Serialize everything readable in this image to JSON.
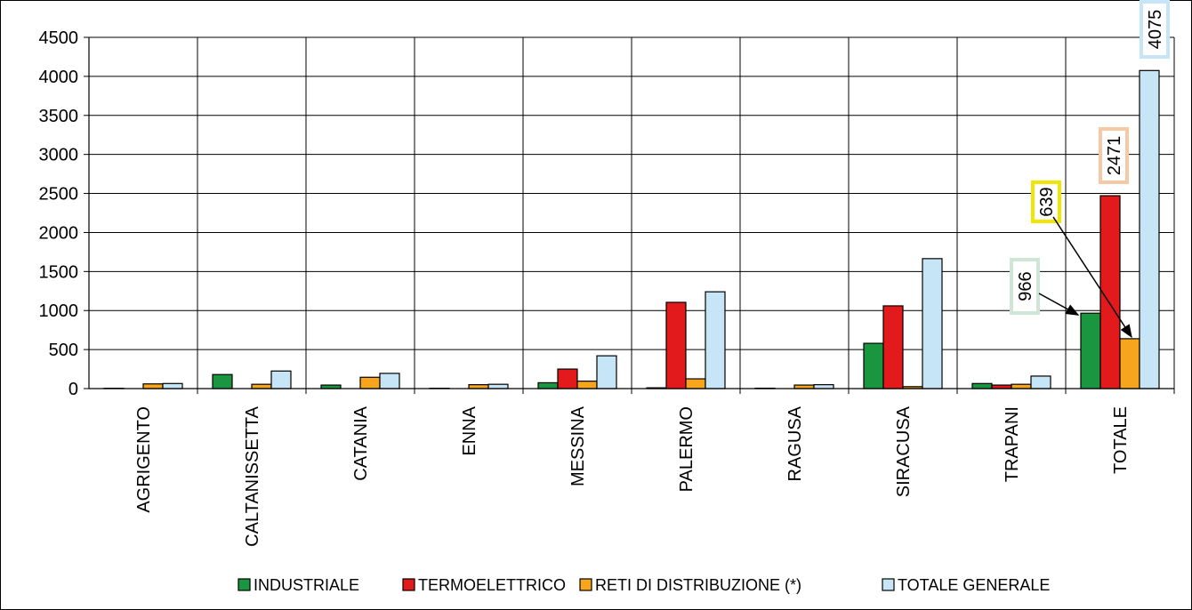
{
  "chart_data": {
    "type": "bar",
    "categories": [
      "AGRIGENTO",
      "CALTANISSETTA",
      "CATANIA",
      "ENNA",
      "MESSINA",
      "PALERMO",
      "RAGUSA",
      "SIRACUSA",
      "TRAPANI",
      "TOTALE"
    ],
    "series": [
      {
        "name": "INDUSTRIALE",
        "color": "#1a9641",
        "values": [
          4,
          180,
          45,
          4,
          75,
          10,
          5,
          580,
          65,
          966
        ]
      },
      {
        "name": "TERMOELETTRICO",
        "color": "#e31a1c",
        "values": [
          0,
          0,
          0,
          0,
          250,
          1105,
          0,
          1060,
          45,
          2471
        ]
      },
      {
        "name": "RETI DI DISTRIBUZIONE (*)",
        "color": "#f7a51c",
        "values": [
          60,
          55,
          145,
          50,
          95,
          125,
          45,
          25,
          55,
          639
        ]
      },
      {
        "name": "TOTALE GENERALE",
        "color": "#c6e6f7",
        "values": [
          65,
          225,
          195,
          55,
          420,
          1240,
          50,
          1665,
          160,
          4075
        ]
      }
    ],
    "ylim": [
      0,
      4500
    ],
    "yticks": [
      "0",
      "500",
      "1000",
      "1500",
      "2000",
      "2500",
      "3000",
      "3500",
      "4000",
      "4500"
    ],
    "grid": true,
    "legend_position": "bottom",
    "annotations": [
      {
        "text": "966",
        "category": "TOTALE",
        "series": "INDUSTRIALE",
        "box_color": "#cfe5d5"
      },
      {
        "text": "2471",
        "category": "TOTALE",
        "series": "TERMOELETTRICO",
        "box_color": "#f5c9a6"
      },
      {
        "text": "639",
        "category": "TOTALE",
        "series": "RETI DI DISTRIBUZIONE (*)",
        "box_color": "#f2e600"
      },
      {
        "text": "4075",
        "category": "TOTALE",
        "series": "TOTALE GENERALE",
        "box_color": "#c6e6f7"
      }
    ]
  }
}
